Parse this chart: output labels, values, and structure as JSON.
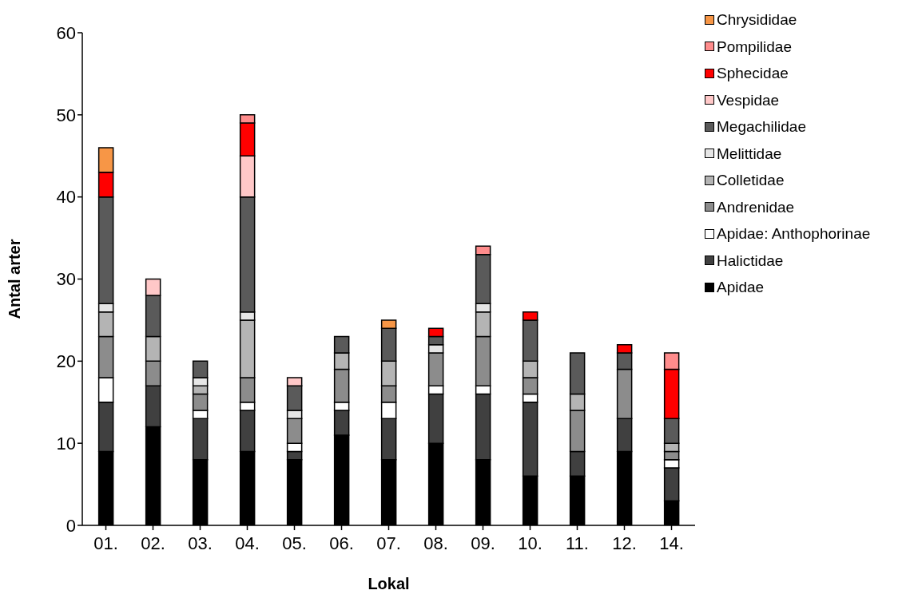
{
  "chart_data": {
    "type": "bar",
    "stacked": true,
    "xlabel": "Lokal",
    "ylabel": "Antal arter",
    "categories": [
      "01.",
      "02.",
      "03.",
      "04.",
      "05.",
      "06.",
      "07.",
      "08.",
      "09.",
      "10.",
      "11.",
      "12.",
      "14."
    ],
    "ylim": [
      0,
      60
    ],
    "yticks": [
      0,
      10,
      20,
      30,
      40,
      50,
      60
    ],
    "grid": false,
    "legend": "top right",
    "series": [
      {
        "name": "Apidae",
        "color": "#000000",
        "values": [
          9,
          12,
          8,
          9,
          8,
          11,
          8,
          10,
          8,
          6,
          6,
          9,
          3
        ]
      },
      {
        "name": "Halictidae",
        "color": "#404040",
        "values": [
          6,
          5,
          5,
          5,
          1,
          3,
          5,
          6,
          8,
          9,
          3,
          4,
          4
        ]
      },
      {
        "name": "Apidae: Anthophorinae",
        "color": "#ffffff",
        "values": [
          3,
          0,
          1,
          1,
          1,
          1,
          2,
          1,
          1,
          1,
          0,
          0,
          1
        ]
      },
      {
        "name": "Andrenidae",
        "color": "#8c8c8c",
        "values": [
          5,
          3,
          2,
          3,
          3,
          4,
          2,
          4,
          6,
          2,
          5,
          6,
          1
        ]
      },
      {
        "name": "Colletidae",
        "color": "#b4b4b4",
        "values": [
          3,
          3,
          1,
          7,
          0,
          2,
          3,
          0,
          3,
          2,
          2,
          0,
          1
        ]
      },
      {
        "name": "Melittidae",
        "color": "#e6e6e6",
        "values": [
          1,
          0,
          1,
          1,
          1,
          0,
          0,
          1,
          1,
          0,
          0,
          0,
          0
        ]
      },
      {
        "name": "Megachilidae",
        "color": "#5a5a5a",
        "values": [
          13,
          5,
          2,
          14,
          3,
          2,
          4,
          1,
          6,
          5,
          5,
          2,
          3
        ]
      },
      {
        "name": "Vespidae",
        "color": "#ffc8c8",
        "values": [
          0,
          2,
          0,
          5,
          1,
          0,
          0,
          0,
          0,
          0,
          0,
          0,
          0
        ]
      },
      {
        "name": "Sphecidae",
        "color": "#ff0000",
        "values": [
          3,
          0,
          0,
          4,
          0,
          0,
          0,
          1,
          0,
          1,
          0,
          1,
          6
        ]
      },
      {
        "name": "Pompilidae",
        "color": "#ff8c8c",
        "values": [
          0,
          0,
          0,
          1,
          0,
          0,
          0,
          0,
          1,
          0,
          0,
          0,
          2
        ]
      },
      {
        "name": "Chrysididae",
        "color": "#f79646",
        "values": [
          3,
          0,
          0,
          0,
          0,
          0,
          1,
          0,
          0,
          0,
          0,
          0,
          0
        ]
      }
    ]
  }
}
